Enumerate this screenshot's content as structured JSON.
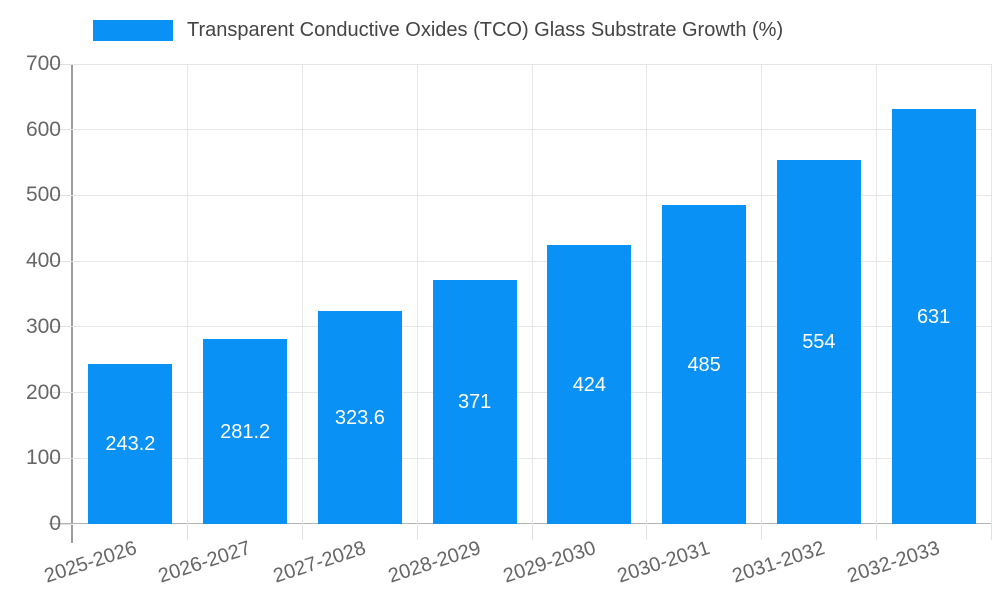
{
  "legend": {
    "label": "Transparent Conductive Oxides (TCO) Glass Substrate Growth (%)"
  },
  "chart_data": {
    "type": "bar",
    "title": "Transparent Conductive Oxides (TCO) Glass Substrate Growth (%)",
    "categories": [
      "2025-2026",
      "2026-2027",
      "2027-2028",
      "2028-2029",
      "2029-2030",
      "2030-2031",
      "2031-2032",
      "2032-2033"
    ],
    "series": [
      {
        "name": "Transparent Conductive Oxides (TCO) Glass Substrate Growth (%)",
        "values": [
          243.2,
          281.2,
          323.6,
          371,
          424,
          485,
          554,
          631
        ]
      }
    ],
    "value_labels": [
      "243.2",
      "281.2",
      "323.6",
      "371",
      "424",
      "485",
      "554",
      "631"
    ],
    "xlabel": "",
    "ylabel": "",
    "ylim": [
      0,
      700
    ],
    "yticks": [
      0,
      100,
      200,
      300,
      400,
      500,
      600,
      700
    ],
    "grid": true,
    "legend_position": "top-left",
    "value_label_position": "inside-center"
  },
  "colors": {
    "bar": "#0a91f5",
    "grid": "#e6e6e6",
    "tick": "#e0e0e0",
    "y_axis": "#9e9e9e",
    "baseline": "#b3b3b3",
    "axis_text": "#666666",
    "title_text": "#444444",
    "value_text": "#ffffff",
    "background": "#ffffff"
  }
}
